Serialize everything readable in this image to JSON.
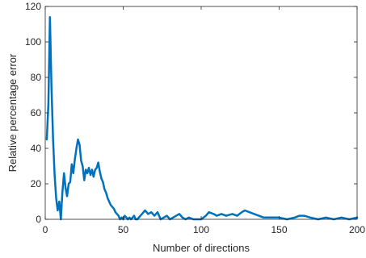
{
  "chart_data": {
    "type": "line",
    "title": "",
    "xlabel": "Number of directions",
    "ylabel": "Relative percentage error",
    "xlim": [
      0,
      200
    ],
    "ylim": [
      0,
      120
    ],
    "xticks": [
      0,
      50,
      100,
      150,
      200
    ],
    "yticks": [
      0,
      20,
      40,
      60,
      80,
      100,
      120
    ],
    "grid": false,
    "legend": "none",
    "series": [
      {
        "color": "#0072BD",
        "x": [
          1,
          2,
          3,
          4,
          5,
          6,
          7,
          8,
          9,
          10,
          11,
          12,
          13,
          14,
          15,
          16,
          17,
          18,
          19,
          20,
          21,
          22,
          23,
          24,
          25,
          26,
          27,
          28,
          29,
          30,
          31,
          32,
          33,
          34,
          35,
          36,
          37,
          38,
          39,
          40,
          41,
          42,
          43,
          44,
          45,
          46,
          47,
          48,
          49,
          50,
          51,
          52,
          53,
          54,
          55,
          56,
          57,
          58,
          59,
          60,
          62,
          64,
          66,
          68,
          70,
          72,
          74,
          76,
          78,
          80,
          82,
          84,
          86,
          88,
          90,
          92,
          95,
          100,
          103,
          105,
          108,
          110,
          113,
          116,
          120,
          123,
          126,
          128,
          131,
          134,
          137,
          140,
          145,
          150,
          155,
          160,
          163,
          166,
          170,
          175,
          180,
          185,
          190,
          195,
          200
        ],
        "y": [
          45,
          65,
          114,
          75,
          45,
          25,
          12,
          5,
          10,
          0,
          15,
          26,
          18,
          13,
          20,
          21,
          31,
          26,
          34,
          40,
          45,
          42,
          33,
          30,
          22,
          28,
          26,
          29,
          25,
          28,
          24,
          28,
          29,
          32,
          27,
          23,
          21,
          17,
          15,
          12,
          10,
          8,
          7,
          6,
          4,
          3,
          2,
          0,
          1,
          0,
          2,
          1,
          0,
          1,
          0,
          1,
          2,
          0,
          0,
          1,
          3,
          5,
          3,
          4,
          2,
          4,
          0,
          1,
          2,
          0,
          1,
          2,
          3,
          1,
          0,
          1,
          0,
          0,
          2,
          4,
          3,
          2,
          3,
          2,
          3,
          2,
          4,
          5,
          4,
          3,
          2,
          1,
          1,
          1,
          0,
          1,
          2,
          2,
          1,
          0,
          1,
          0,
          1,
          0,
          1
        ]
      }
    ]
  }
}
